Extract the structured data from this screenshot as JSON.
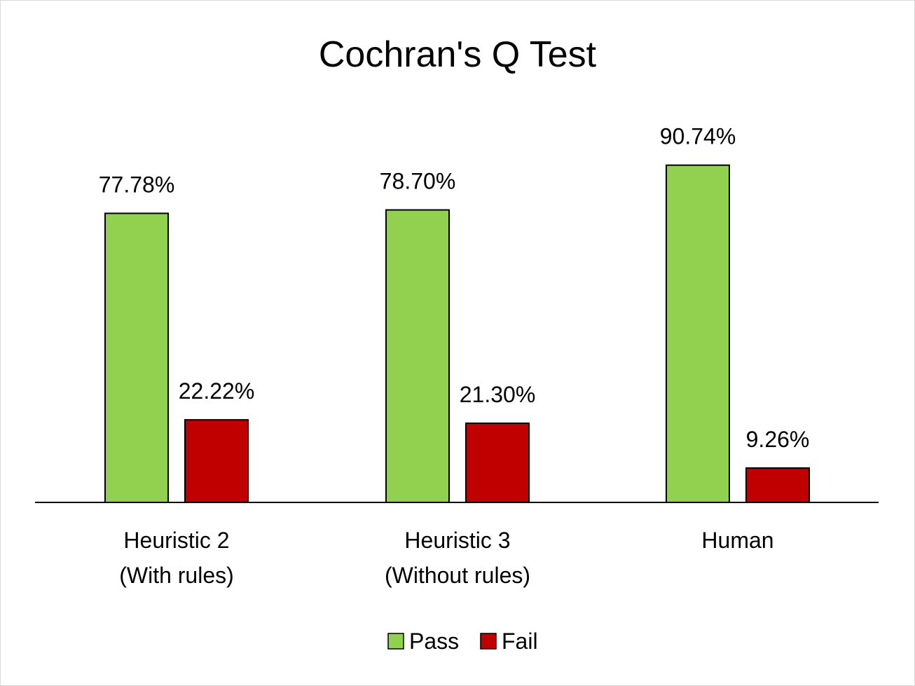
{
  "chart_data": {
    "type": "bar",
    "title": "Cochran's Q Test",
    "categories": [
      [
        "Heuristic 2",
        "(With rules)"
      ],
      [
        "Heuristic 3",
        "(Without rules)"
      ],
      [
        "Human"
      ]
    ],
    "series": [
      {
        "name": "Pass",
        "color": "#92d050",
        "values": [
          77.78,
          78.7,
          90.74
        ],
        "labels": [
          "77.78%",
          "78.70%",
          "90.74%"
        ]
      },
      {
        "name": "Fail",
        "color": "#c00000",
        "values": [
          22.22,
          21.3,
          9.26
        ],
        "labels": [
          "22.22%",
          "21.30%",
          "9.26%"
        ]
      }
    ],
    "xlabel": "",
    "ylabel": "",
    "ylim": [
      0,
      100
    ],
    "y_axis_visible": false,
    "grid": false,
    "legend_position": "bottom"
  }
}
